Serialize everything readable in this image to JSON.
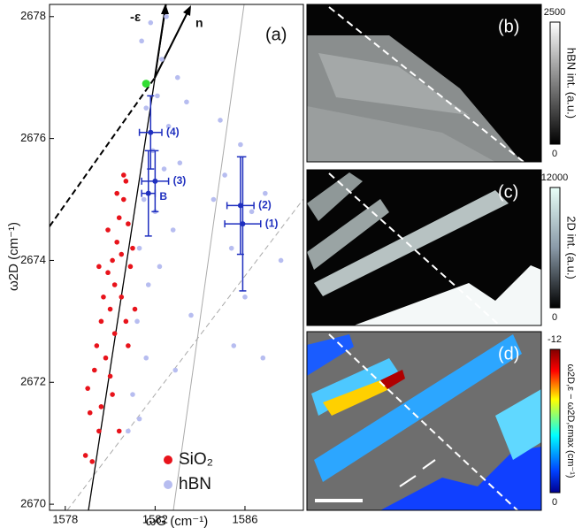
{
  "chart_data": [
    {
      "type": "scatter",
      "label": "(a)",
      "xlabel": "ωG (cm⁻¹)",
      "ylabel": "ω2D (cm⁻¹)",
      "xlim": [
        1577.3,
        1588.6
      ],
      "ylim": [
        2669.9,
        2678.2
      ],
      "xticks": [
        1578,
        1582,
        1586
      ],
      "yticks": [
        2670,
        2672,
        2674,
        2676,
        2678
      ],
      "arrows": [
        "-ε",
        "n"
      ],
      "series": [
        {
          "name": "SiO₂",
          "color": "#e8131b",
          "x": [
            1578.9,
            1579.1,
            1579.0,
            1579.3,
            1579.5,
            1579.4,
            1579.6,
            1579.8,
            1579.7,
            1579.9,
            1580.0,
            1580.1,
            1580.2,
            1580.3,
            1580.4,
            1580.5,
            1580.6,
            1580.7,
            1580.8,
            1580.5,
            1580.9,
            1581.0,
            1580.2,
            1580.0,
            1579.6,
            1580.4,
            1580.6,
            1579.9,
            1580.3,
            1580.8,
            1581.1,
            1579.2,
            1580.1,
            1580.7,
            1579.5
          ],
          "y": [
            2670.8,
            2671.5,
            2671.9,
            2672.2,
            2671.2,
            2672.6,
            2673.0,
            2672.4,
            2673.4,
            2673.8,
            2673.2,
            2674.0,
            2673.6,
            2674.3,
            2674.7,
            2674.1,
            2675.0,
            2675.3,
            2674.6,
            2673.4,
            2673.9,
            2674.2,
            2672.8,
            2672.1,
            2671.6,
            2671.2,
            2675.4,
            2674.5,
            2675.1,
            2672.6,
            2673.2,
            2670.7,
            2671.8,
            2673.0,
            2673.9
          ]
        },
        {
          "name": "hBN",
          "color": "#b7bdf0",
          "x": [
            1581.4,
            1581.8,
            1582.3,
            1581.6,
            1582.1,
            1582.6,
            1581.9,
            1582.4,
            1581.5,
            1582.0,
            1581.3,
            1581.7,
            1581.2,
            1581.6,
            1581.0,
            1580.8,
            1582.2,
            1582.8,
            1583.1,
            1583.4,
            1583.0,
            1584.6,
            1585.1,
            1585.4,
            1585.8,
            1586.3,
            1586.0,
            1585.5,
            1586.8,
            1587.6,
            1584.9,
            1582.5,
            1581.3,
            1583.6,
            1586.9,
            1582.9
          ],
          "y": [
            2677.6,
            2677.9,
            2677.3,
            2676.5,
            2676.7,
            2676.2,
            2675.8,
            2675.5,
            2675.0,
            2674.8,
            2674.2,
            2673.6,
            2673.0,
            2672.4,
            2671.8,
            2671.2,
            2673.9,
            2674.5,
            2675.6,
            2676.6,
            2677.0,
            2675.0,
            2675.4,
            2674.2,
            2675.9,
            2674.8,
            2673.4,
            2672.6,
            2672.4,
            2674.0,
            2676.3,
            2678.0,
            2671.4,
            2673.1,
            2675.1,
            2672.2
          ]
        }
      ],
      "marker": {
        "x": 1581.6,
        "y": 2676.9,
        "color": "#33dd33"
      },
      "errorbars": {
        "color": "#1f2fbf",
        "points": [
          {
            "label": "(4)",
            "x": 1581.8,
            "y": 2676.1,
            "xerr": 0.5,
            "yerr": 0.6
          },
          {
            "label": "(3)",
            "x": 1582.0,
            "y": 2675.3,
            "xerr": 0.6,
            "yerr": 0.5
          },
          {
            "label": "B",
            "x": 1581.7,
            "y": 2675.1,
            "xerr": 0.3,
            "yerr": 0.7
          },
          {
            "label": "(2)",
            "x": 1585.8,
            "y": 2674.9,
            "xerr": 0.6,
            "yerr": 0.8
          },
          {
            "label": "(1)",
            "x": 1585.9,
            "y": 2674.6,
            "xerr": 0.8,
            "yerr": 1.1
          }
        ]
      }
    },
    {
      "type": "image",
      "label": "(b)",
      "colorbar": {
        "clim": [
          2500,
          0
        ],
        "ticks": [
          2500,
          0
        ],
        "label": "hBN int. (a.u.)"
      }
    },
    {
      "type": "image",
      "label": "(c)",
      "colorbar": {
        "clim": [
          12000,
          0
        ],
        "ticks": [
          12000,
          0
        ],
        "label": "2D int. (a.u.)"
      }
    },
    {
      "type": "image",
      "label": "(d)",
      "colorbar": {
        "clim": [
          -12,
          0
        ],
        "ticks": [
          -12,
          0
        ],
        "label": "ω2D,ε − ω2D,εmax (cm⁻¹)"
      }
    }
  ]
}
